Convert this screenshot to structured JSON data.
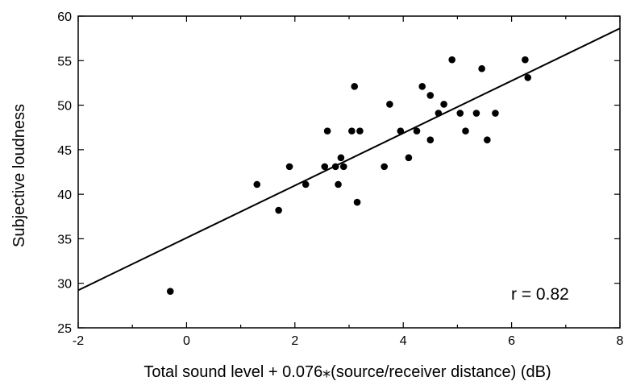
{
  "chart_data": {
    "type": "scatter",
    "xlabel": "Total sound level + 0.076⁎(source/receiver distance)  (dB)",
    "ylabel": "Subjective loudness",
    "xlim": [
      -2,
      8
    ],
    "ylim": [
      25,
      60
    ],
    "xticks": [
      -2,
      0,
      2,
      4,
      6,
      8
    ],
    "yticks": [
      25,
      30,
      35,
      40,
      45,
      50,
      55,
      60
    ],
    "grid": false,
    "annotation": "r = 0.82",
    "regression": {
      "slope": 2.94,
      "intercept": 35.1
    },
    "points": [
      {
        "x": -0.3,
        "y": 29.1
      },
      {
        "x": 1.3,
        "y": 41.1
      },
      {
        "x": 1.7,
        "y": 38.2
      },
      {
        "x": 1.9,
        "y": 43.1
      },
      {
        "x": 2.2,
        "y": 41.1
      },
      {
        "x": 2.55,
        "y": 43.1
      },
      {
        "x": 2.6,
        "y": 47.1
      },
      {
        "x": 2.75,
        "y": 43.1
      },
      {
        "x": 2.8,
        "y": 41.1
      },
      {
        "x": 2.85,
        "y": 44.1
      },
      {
        "x": 2.9,
        "y": 43.1
      },
      {
        "x": 3.05,
        "y": 47.1
      },
      {
        "x": 3.1,
        "y": 52.1
      },
      {
        "x": 3.15,
        "y": 39.1
      },
      {
        "x": 3.2,
        "y": 47.1
      },
      {
        "x": 3.65,
        "y": 43.1
      },
      {
        "x": 3.75,
        "y": 50.1
      },
      {
        "x": 3.95,
        "y": 47.1
      },
      {
        "x": 4.1,
        "y": 44.1
      },
      {
        "x": 4.25,
        "y": 47.1
      },
      {
        "x": 4.35,
        "y": 52.1
      },
      {
        "x": 4.5,
        "y": 46.1
      },
      {
        "x": 4.5,
        "y": 51.1
      },
      {
        "x": 4.65,
        "y": 49.1
      },
      {
        "x": 4.75,
        "y": 50.1
      },
      {
        "x": 4.9,
        "y": 55.1
      },
      {
        "x": 5.05,
        "y": 49.1
      },
      {
        "x": 5.15,
        "y": 47.1
      },
      {
        "x": 5.35,
        "y": 49.1
      },
      {
        "x": 5.45,
        "y": 54.1
      },
      {
        "x": 5.55,
        "y": 46.1
      },
      {
        "x": 5.7,
        "y": 49.1
      },
      {
        "x": 6.25,
        "y": 55.1
      },
      {
        "x": 6.3,
        "y": 53.1
      }
    ]
  }
}
